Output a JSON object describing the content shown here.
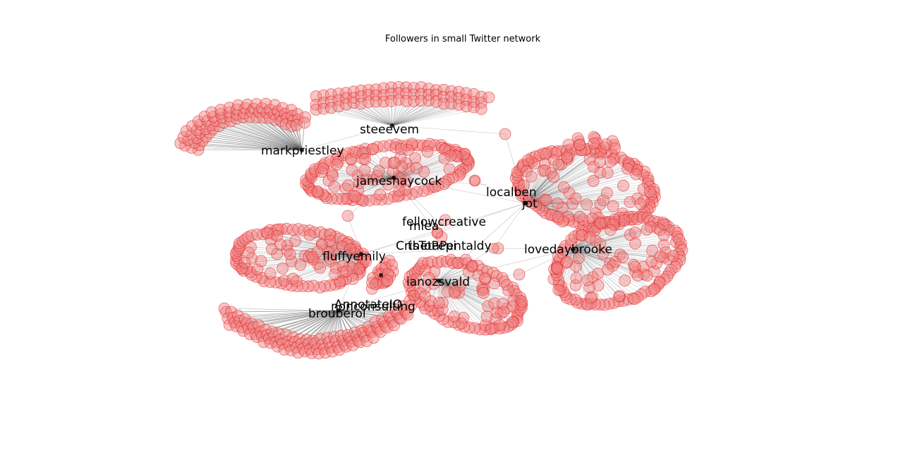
{
  "title": "Followers in small Twitter network",
  "colors": {
    "node_fill": "#f08080",
    "node_stroke": "#e01010",
    "edge": "#555555",
    "hub": "#000000"
  },
  "hubs": [
    {
      "id": "steeevem",
      "label": "steeevem"
    },
    {
      "id": "markpriestley",
      "label": "markpriestley"
    },
    {
      "id": "jameshaycock",
      "label": "jameshaycock"
    },
    {
      "id": "localben",
      "label": "localben"
    },
    {
      "id": "jot",
      "label": "jot"
    },
    {
      "id": "fellowcreative",
      "label": "fellowcreative"
    },
    {
      "id": "mlea",
      "label": "mlea"
    },
    {
      "id": "cluster_c",
      "label": "CrisToPepi"
    },
    {
      "id": "cluster_t",
      "label": "thetaPentaldy"
    },
    {
      "id": "fluffyemily",
      "label": "fluffyemily"
    },
    {
      "id": "lovedaybrooke",
      "label": "lovedaybrooke"
    },
    {
      "id": "ianozsvald",
      "label": "ianozsvald"
    },
    {
      "id": "annotatelo",
      "label": "AnnotateIO"
    },
    {
      "id": "nonconsulting",
      "label": "nonconsulting"
    },
    {
      "id": "brouberol",
      "label": "brouberol"
    }
  ]
}
